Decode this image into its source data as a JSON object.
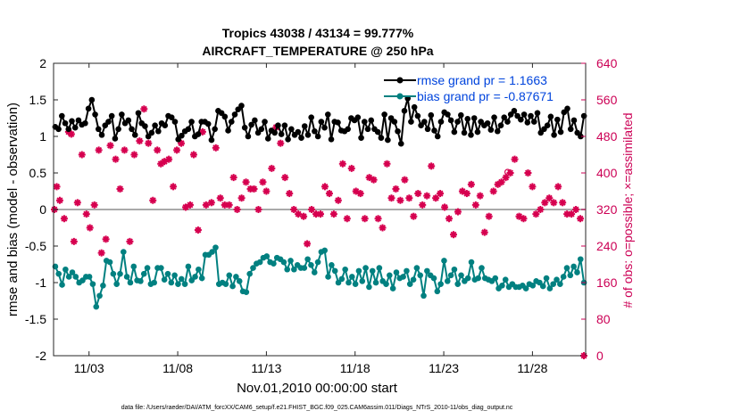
{
  "chart_data": {
    "type": "line",
    "title": "Tropics 43038 / 43134 = 99.777%",
    "subtitle": "AIRCRAFT_TEMPERATURE @ 250 hPa",
    "xlabel": "Nov.01,2010 00:00:00 start",
    "ylabel": "rmse and bias (model - observation)",
    "ylabel_right": "# of obs: o=possible; ×=assimilated",
    "xlim": [
      0.0,
      30.0
    ],
    "ylim": [
      -2,
      2
    ],
    "ylim_right": [
      0,
      640
    ],
    "x_ticks": [
      2,
      7,
      12,
      17,
      22,
      27
    ],
    "x_tick_labels": [
      "11/03",
      "11/08",
      "11/13",
      "11/18",
      "11/23",
      "11/28"
    ],
    "y_ticks": [
      "-2",
      "-1.5",
      "-1",
      "-0.5",
      "0",
      "0.5",
      "1",
      "1.5",
      "2"
    ],
    "y_tick_values": [
      -2,
      -1.5,
      -1,
      -0.5,
      0,
      0.5,
      1,
      1.5,
      2
    ],
    "y_ticks_right": [
      "0",
      "80",
      "160",
      "240",
      "320",
      "400",
      "480",
      "560",
      "640"
    ],
    "y_tick_values_right": [
      0,
      80,
      160,
      240,
      320,
      400,
      480,
      560,
      640
    ],
    "legend_placement": "top-right",
    "grid": false,
    "zero_line": true,
    "series": [
      {
        "name": "rmse grand pr = 1.1663",
        "color": "#000000",
        "marker": "circle",
        "values": [
          1.13,
          1.1,
          1.28,
          1.18,
          1.1,
          1.21,
          1.12,
          1.22,
          1.16,
          1.18,
          1.38,
          1.5,
          1.3,
          1.1,
          1.02,
          1.15,
          1.2,
          1.28,
          0.97,
          1.1,
          1.3,
          1.18,
          1.22,
          1.1,
          1.02,
          1.32,
          1.18,
          1.14,
          1.0,
          1.05,
          1.15,
          1.07,
          1.18,
          1.15,
          1.28,
          1.26,
          1.2,
          0.96,
          1.01,
          1.07,
          1.1,
          1.2,
          1.0,
          1.03,
          1.2,
          1.2,
          1.17,
          0.95,
          1.1,
          1.35,
          1.32,
          1.27,
          1.08,
          1.2,
          1.3,
          1.37,
          1.42,
          1.12,
          1.0,
          1.16,
          1.22,
          1.05,
          1.1,
          1.2,
          0.97,
          1.08,
          1.05,
          1.15,
          1.03,
          1.15,
          0.96,
          1.1,
          1.02,
          1.06,
          0.98,
          1.14,
          1.02,
          1.26,
          1.07,
          1.0,
          1.2,
          1.12,
          1.3,
          0.96,
          1.2,
          1.19,
          1.08,
          1.07,
          1.1,
          1.25,
          1.22,
          1.26,
          0.98,
          1.2,
          1.1,
          1.22,
          1.1,
          1.06,
          0.98,
          1.3,
          0.95,
          1.25,
          1.2,
          1.07,
          0.9,
          1.35,
          1.52,
          1.2,
          1.4,
          1.28,
          1.15,
          1.2,
          1.1,
          1.29,
          1.08,
          1.0,
          1.2,
          1.33,
          1.3,
          1.22,
          1.06,
          1.2,
          1.29,
          1.05,
          1.24,
          1.02,
          1.25,
          1.06,
          1.2,
          1.15,
          1.18,
          1.09,
          1.26,
          1.07,
          1.15,
          1.26,
          1.2,
          1.3,
          1.35,
          1.28,
          1.23,
          1.3,
          1.19,
          1.28,
          1.2,
          1.32,
          1.05,
          1.1,
          1.15,
          1.27,
          1.02,
          1.23,
          1.06,
          1.33,
          1.38,
          1.1,
          1.22,
          1.05,
          1.0,
          1.28
        ]
      },
      {
        "name": "bias grand pr = -0.87671",
        "color": "#008080",
        "marker": "circle",
        "values": [
          -0.78,
          -0.88,
          -1.03,
          -0.82,
          -0.92,
          -0.86,
          -0.92,
          -1.0,
          -0.97,
          -0.92,
          -0.92,
          -1.02,
          -1.33,
          -1.18,
          -1.04,
          -0.7,
          -0.72,
          -0.88,
          -1.02,
          -0.88,
          -0.58,
          -0.92,
          -1.0,
          -0.78,
          -0.97,
          -0.98,
          -0.88,
          -0.8,
          -1.02,
          -1.0,
          -0.8,
          -0.8,
          -0.96,
          -0.88,
          -1.0,
          -0.9,
          -1.02,
          -0.95,
          -1.02,
          -0.78,
          -0.97,
          -0.92,
          -0.82,
          -0.94,
          -0.62,
          -0.62,
          -0.58,
          -0.52,
          -1.02,
          -1.0,
          -1.02,
          -0.9,
          -1.05,
          -0.92,
          -0.98,
          -1.12,
          -1.13,
          -0.88,
          -0.8,
          -0.74,
          -0.72,
          -0.66,
          -0.64,
          -0.72,
          -0.74,
          -0.66,
          -0.68,
          -0.72,
          -0.82,
          -0.7,
          -0.82,
          -0.76,
          -0.8,
          -0.8,
          -0.68,
          -0.76,
          -0.86,
          -0.72,
          -0.58,
          -0.56,
          -0.92,
          -0.76,
          -0.84,
          -1.0,
          -0.95,
          -0.82,
          -1.0,
          -0.92,
          -1.02,
          -0.84,
          -0.98,
          -0.8,
          -1.06,
          -0.84,
          -1.0,
          -0.8,
          -0.98,
          -1.02,
          -0.9,
          -1.08,
          -0.86,
          -0.94,
          -0.92,
          -0.84,
          -1.02,
          -0.96,
          -0.8,
          -0.9,
          -1.18,
          -0.84,
          -0.9,
          -0.94,
          -1.12,
          -1.02,
          -0.7,
          -0.98,
          -0.9,
          -0.82,
          -1.02,
          -0.9,
          -0.98,
          -0.94,
          -0.72,
          -0.96,
          -0.94,
          -0.8,
          -0.94,
          -0.96,
          -0.98,
          -0.94,
          -1.08,
          -1.04,
          -0.96,
          -1.06,
          -1.02,
          -1.06,
          -1.06,
          -1.04,
          -1.08,
          -1.02,
          -1.04,
          -0.98,
          -1.0,
          -1.05,
          -0.94,
          -1.08,
          -1.02,
          -0.96,
          -1.02,
          -0.92,
          -0.8,
          -0.9,
          -0.78,
          -0.86,
          -0.68,
          -1.0
        ]
      }
    ],
    "obs_counts": [
      {
        "x": 0.05,
        "y": 320
      },
      {
        "x": 0.18,
        "y": 370
      },
      {
        "x": 0.35,
        "y": 340
      },
      {
        "x": 0.6,
        "y": 300
      },
      {
        "x": 0.85,
        "y": 490
      },
      {
        "x": 1.0,
        "y": 485
      },
      {
        "x": 1.15,
        "y": 250
      },
      {
        "x": 1.35,
        "y": 335
      },
      {
        "x": 1.6,
        "y": 440
      },
      {
        "x": 1.85,
        "y": 310
      },
      {
        "x": 2.05,
        "y": 280
      },
      {
        "x": 2.3,
        "y": 330
      },
      {
        "x": 2.55,
        "y": 450
      },
      {
        "x": 2.7,
        "y": 225
      },
      {
        "x": 2.95,
        "y": 255
      },
      {
        "x": 3.2,
        "y": 460
      },
      {
        "x": 3.5,
        "y": 430
      },
      {
        "x": 3.75,
        "y": 365
      },
      {
        "x": 4.0,
        "y": 450
      },
      {
        "x": 4.3,
        "y": 250
      },
      {
        "x": 4.55,
        "y": 440
      },
      {
        "x": 4.85,
        "y": 470
      },
      {
        "x": 5.1,
        "y": 540
      },
      {
        "x": 5.35,
        "y": 465
      },
      {
        "x": 5.6,
        "y": 340
      },
      {
        "x": 5.85,
        "y": 450
      },
      {
        "x": 6.05,
        "y": 420
      },
      {
        "x": 6.25,
        "y": 425
      },
      {
        "x": 6.5,
        "y": 430
      },
      {
        "x": 6.75,
        "y": 370
      },
      {
        "x": 6.95,
        "y": 450
      },
      {
        "x": 7.2,
        "y": 465
      },
      {
        "x": 7.45,
        "y": 325
      },
      {
        "x": 7.7,
        "y": 330
      },
      {
        "x": 7.9,
        "y": 440
      },
      {
        "x": 8.15,
        "y": 275
      },
      {
        "x": 8.4,
        "y": 490
      },
      {
        "x": 8.6,
        "y": 330
      },
      {
        "x": 8.9,
        "y": 335
      },
      {
        "x": 9.15,
        "y": 455
      },
      {
        "x": 9.4,
        "y": 345
      },
      {
        "x": 9.65,
        "y": 330
      },
      {
        "x": 9.9,
        "y": 330
      },
      {
        "x": 10.15,
        "y": 390
      },
      {
        "x": 10.35,
        "y": 320
      },
      {
        "x": 10.6,
        "y": 345
      },
      {
        "x": 10.85,
        "y": 380
      },
      {
        "x": 11.1,
        "y": 365
      },
      {
        "x": 11.3,
        "y": 365
      },
      {
        "x": 11.55,
        "y": 320
      },
      {
        "x": 11.8,
        "y": 380
      },
      {
        "x": 12.0,
        "y": 360
      },
      {
        "x": 12.3,
        "y": 410
      },
      {
        "x": 12.55,
        "y": 500
      },
      {
        "x": 12.8,
        "y": 465
      },
      {
        "x": 13.05,
        "y": 390
      },
      {
        "x": 13.3,
        "y": 355
      },
      {
        "x": 13.55,
        "y": 320
      },
      {
        "x": 13.8,
        "y": 310
      },
      {
        "x": 14.1,
        "y": 305
      },
      {
        "x": 14.3,
        "y": 245
      },
      {
        "x": 14.55,
        "y": 320
      },
      {
        "x": 14.8,
        "y": 310
      },
      {
        "x": 15.05,
        "y": 310
      },
      {
        "x": 15.3,
        "y": 370
      },
      {
        "x": 15.55,
        "y": 355
      },
      {
        "x": 15.8,
        "y": 310
      },
      {
        "x": 16.05,
        "y": 340
      },
      {
        "x": 16.3,
        "y": 420
      },
      {
        "x": 16.55,
        "y": 300
      },
      {
        "x": 16.8,
        "y": 410
      },
      {
        "x": 17.05,
        "y": 360
      },
      {
        "x": 17.3,
        "y": 355
      },
      {
        "x": 17.55,
        "y": 300
      },
      {
        "x": 17.8,
        "y": 390
      },
      {
        "x": 18.05,
        "y": 385
      },
      {
        "x": 18.3,
        "y": 300
      },
      {
        "x": 18.55,
        "y": 280
      },
      {
        "x": 18.8,
        "y": 420
      },
      {
        "x": 19.05,
        "y": 345
      },
      {
        "x": 19.3,
        "y": 365
      },
      {
        "x": 19.55,
        "y": 340
      },
      {
        "x": 19.8,
        "y": 385
      },
      {
        "x": 20.05,
        "y": 345
      },
      {
        "x": 20.3,
        "y": 305
      },
      {
        "x": 20.55,
        "y": 355
      },
      {
        "x": 20.8,
        "y": 330
      },
      {
        "x": 21.05,
        "y": 350
      },
      {
        "x": 21.3,
        "y": 415
      },
      {
        "x": 21.55,
        "y": 345
      },
      {
        "x": 21.8,
        "y": 355
      },
      {
        "x": 22.05,
        "y": 325
      },
      {
        "x": 22.3,
        "y": 300
      },
      {
        "x": 22.55,
        "y": 265
      },
      {
        "x": 22.8,
        "y": 315
      },
      {
        "x": 23.05,
        "y": 360
      },
      {
        "x": 23.3,
        "y": 355
      },
      {
        "x": 23.55,
        "y": 375
      },
      {
        "x": 23.8,
        "y": 330
      },
      {
        "x": 24.05,
        "y": 350
      },
      {
        "x": 24.3,
        "y": 270
      },
      {
        "x": 24.55,
        "y": 305
      },
      {
        "x": 24.8,
        "y": 360
      },
      {
        "x": 25.05,
        "y": 375
      },
      {
        "x": 25.25,
        "y": 380
      },
      {
        "x": 25.5,
        "y": 390
      },
      {
        "x": 25.75,
        "y": 400
      },
      {
        "x": 26.0,
        "y": 430
      },
      {
        "x": 26.25,
        "y": 305
      },
      {
        "x": 26.5,
        "y": 300
      },
      {
        "x": 26.75,
        "y": 400
      },
      {
        "x": 27.0,
        "y": 370
      },
      {
        "x": 27.2,
        "y": 310
      },
      {
        "x": 27.45,
        "y": 320
      },
      {
        "x": 27.7,
        "y": 335
      },
      {
        "x": 27.95,
        "y": 345
      },
      {
        "x": 28.2,
        "y": 335
      },
      {
        "x": 28.45,
        "y": 370
      },
      {
        "x": 28.7,
        "y": 335
      },
      {
        "x": 28.95,
        "y": 310
      },
      {
        "x": 29.2,
        "y": 310
      },
      {
        "x": 29.45,
        "y": 320
      },
      {
        "x": 29.7,
        "y": 300
      },
      {
        "x": 29.9,
        "y": 0
      }
    ],
    "obs_possible": [
      {
        "x": 25.6,
        "y": 402
      }
    ]
  },
  "footer": {
    "data_file": "data file: /Users/raeder/DAI/ATM_forcXX/CAM6_setup/f.e21.FHIST_BGC.f09_025.CAM6assim.011/Diags_NTrS_2010-11/obs_diag_output.nc"
  },
  "colors": {
    "rmse": "#000000",
    "bias": "#008080",
    "obs": "#d6004f",
    "right_axis": "#cc0055",
    "legend_text": "#0044dd",
    "zero_line": "#a9a9a9"
  }
}
